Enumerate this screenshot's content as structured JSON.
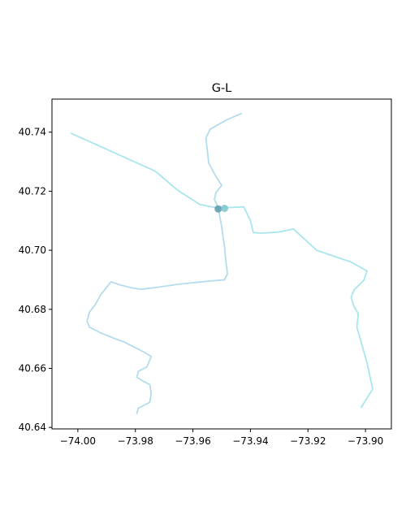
{
  "chart_data": {
    "type": "line",
    "title": "G-L",
    "xlabel": "",
    "ylabel": "",
    "xlim": [
      -74.009,
      -73.891
    ],
    "ylim": [
      40.6395,
      40.7512
    ],
    "grid": false,
    "xticks": [
      {
        "value": -74.0,
        "label": "−74.00"
      },
      {
        "value": -73.98,
        "label": "−73.98"
      },
      {
        "value": -73.96,
        "label": "−73.96"
      },
      {
        "value": -73.94,
        "label": "−73.94"
      },
      {
        "value": -73.92,
        "label": "−73.92"
      },
      {
        "value": -73.9,
        "label": "−73.90"
      }
    ],
    "yticks": [
      {
        "value": 40.64,
        "label": "40.64"
      },
      {
        "value": 40.66,
        "label": "40.66"
      },
      {
        "value": 40.68,
        "label": "40.68"
      },
      {
        "value": 40.7,
        "label": "40.70"
      },
      {
        "value": 40.72,
        "label": "40.72"
      },
      {
        "value": 40.74,
        "label": "40.74"
      }
    ],
    "series": [
      {
        "color": "#a8e6ee",
        "points": [
          [
            -74.0023,
            40.7396
          ],
          [
            -73.9731,
            40.7268
          ],
          [
            -73.9655,
            40.7205
          ],
          [
            -73.9576,
            40.7155
          ],
          [
            -73.9512,
            40.7143
          ],
          [
            -73.9423,
            40.7147
          ],
          [
            -73.94,
            40.71
          ],
          [
            -73.939,
            40.706
          ],
          [
            -73.936,
            40.7058
          ],
          [
            -73.93,
            40.7062
          ],
          [
            -73.925,
            40.7072
          ],
          [
            -73.917,
            40.7
          ],
          [
            -73.905,
            40.696
          ],
          [
            -73.8995,
            40.693
          ],
          [
            -73.9005,
            40.69
          ],
          [
            -73.904,
            40.6865
          ],
          [
            -73.905,
            40.684
          ],
          [
            -73.904,
            40.681
          ],
          [
            -73.9025,
            40.6785
          ],
          [
            -73.903,
            40.674
          ],
          [
            -73.8995,
            40.662
          ],
          [
            -73.8975,
            40.653
          ],
          [
            -73.9015,
            40.6468
          ]
        ]
      },
      {
        "color": "#b4dced",
        "points": [
          [
            -73.9432,
            40.7463
          ],
          [
            -73.948,
            40.7443
          ],
          [
            -73.954,
            40.741
          ],
          [
            -73.9555,
            40.738
          ],
          [
            -73.955,
            40.734
          ],
          [
            -73.9545,
            40.7295
          ],
          [
            -73.952,
            40.725
          ],
          [
            -73.95,
            40.722
          ],
          [
            -73.952,
            40.7195
          ],
          [
            -73.9525,
            40.7172
          ],
          [
            -73.9512,
            40.7143
          ],
          [
            -73.95,
            40.708
          ],
          [
            -73.949,
            40.701
          ],
          [
            -73.9485,
            40.696
          ],
          [
            -73.948,
            40.692
          ],
          [
            -73.949,
            40.69
          ],
          [
            -73.955,
            40.6895
          ],
          [
            -73.965,
            40.6885
          ],
          [
            -73.972,
            40.6875
          ],
          [
            -73.978,
            40.6868
          ],
          [
            -73.981,
            40.6872
          ],
          [
            -73.985,
            40.6882
          ],
          [
            -73.9885,
            40.6893
          ],
          [
            -73.992,
            40.685
          ],
          [
            -73.994,
            40.6815
          ],
          [
            -73.996,
            40.679
          ],
          [
            -73.9968,
            40.676
          ],
          [
            -73.996,
            40.674
          ],
          [
            -73.992,
            40.672
          ],
          [
            -73.987,
            40.67
          ],
          [
            -73.984,
            40.669
          ],
          [
            -73.98,
            40.667
          ],
          [
            -73.977,
            40.6655
          ],
          [
            -73.9745,
            40.664
          ],
          [
            -73.976,
            40.6605
          ],
          [
            -73.979,
            40.659
          ],
          [
            -73.9795,
            40.657
          ],
          [
            -73.977,
            40.6555
          ],
          [
            -73.975,
            40.6545
          ],
          [
            -73.9745,
            40.6515
          ],
          [
            -73.975,
            40.6485
          ],
          [
            -73.977,
            40.6475
          ],
          [
            -73.979,
            40.6465
          ],
          [
            -73.9795,
            40.6447
          ]
        ]
      }
    ],
    "markers": [
      {
        "x": -73.9512,
        "y": 40.714,
        "color": "#5a9aa8"
      },
      {
        "x": -73.949,
        "y": 40.7142,
        "color": "#7cc4cc"
      }
    ]
  }
}
